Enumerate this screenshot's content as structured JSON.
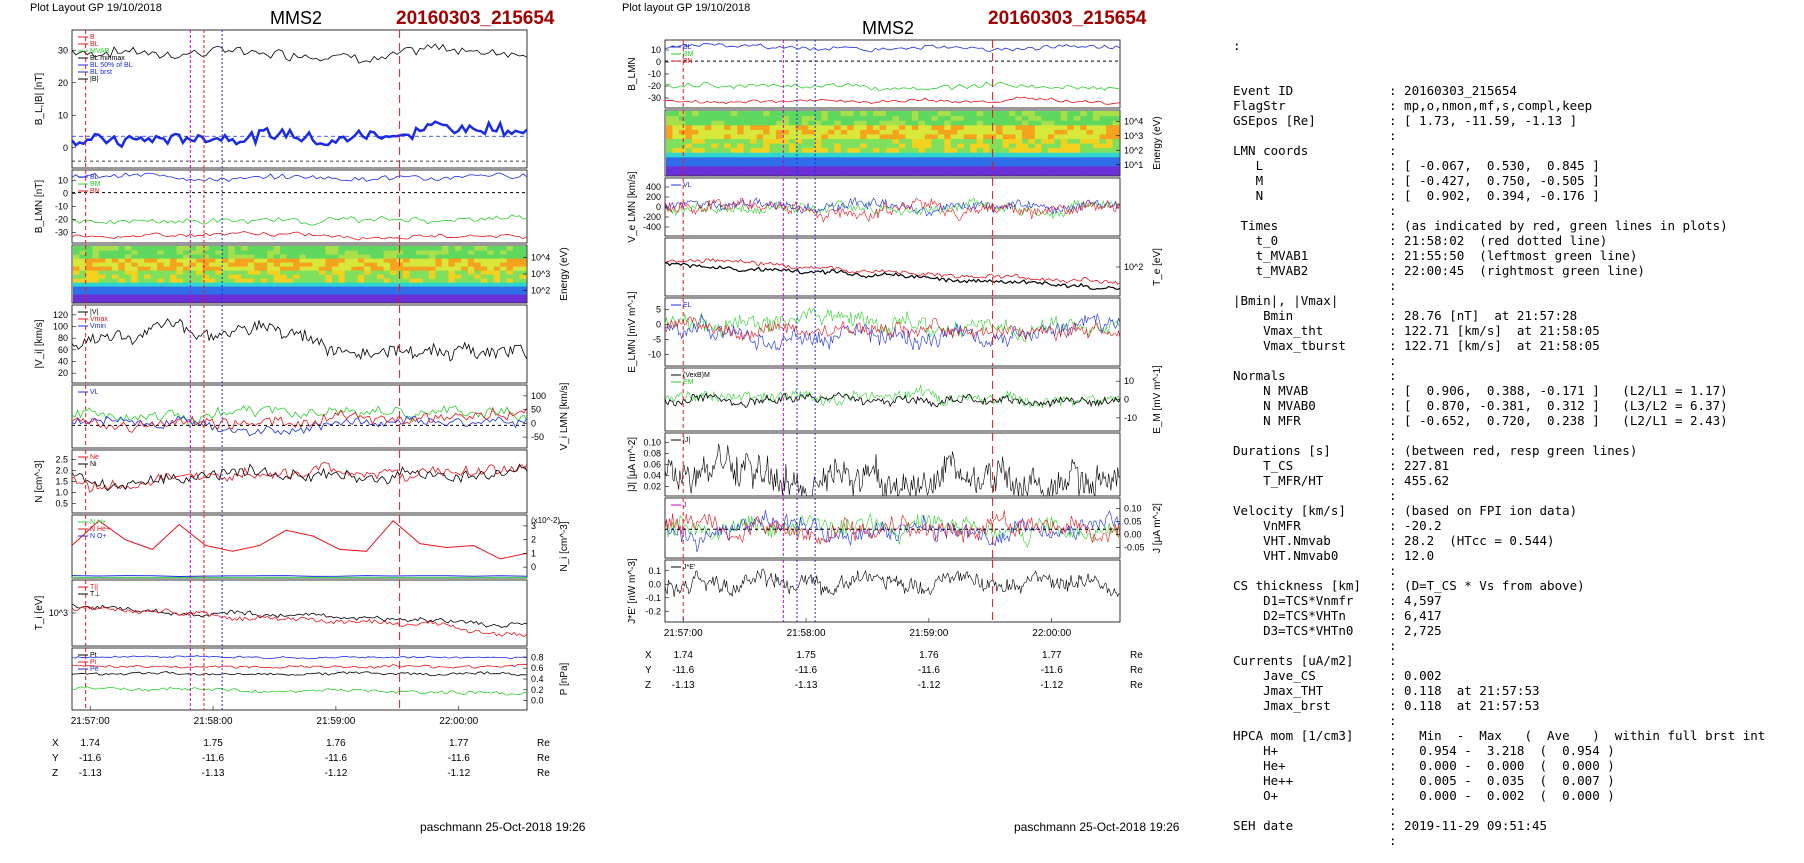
{
  "left": {
    "header": "Plot Layout GP 19/10/2018",
    "title": "MMS2",
    "event": "20160303_215654",
    "footer": "paschmann 25-Oct-2018 19:26",
    "x_ticks": [
      "21:57:00",
      "21:58:00",
      "21:59:00",
      "22:00:00"
    ],
    "pos_rows": [
      {
        "lab": "X",
        "vals": [
          "1.74",
          "1.75",
          "1.76",
          "1.77"
        ],
        "unit": "Re"
      },
      {
        "lab": "Y",
        "vals": [
          "-11.6",
          "-11.6",
          "-11.6",
          "-11.6"
        ],
        "unit": "Re"
      },
      {
        "lab": "Z",
        "vals": [
          "-1.13",
          "-1.13",
          "-1.12",
          "-1.12"
        ],
        "unit": "Re"
      }
    ],
    "panels": [
      {
        "ylabel": "B_L,|B| [nT]",
        "side": "left",
        "ticks": [
          "0",
          "10",
          "20",
          "30"
        ],
        "legend": [
          "B",
          "BL",
          "MVAB",
          "BL minmax",
          "BL 50% of BL",
          "BL brst",
          "|B|"
        ]
      },
      {
        "ylabel": "B_LMN [nT]",
        "side": "left",
        "ticks": [
          "-30",
          "-20",
          "-10",
          "0",
          "10"
        ],
        "legend": [
          "BL",
          "BM",
          "BN"
        ]
      },
      {
        "ylabel": "Energy (eV)",
        "side": "right",
        "ticks": [
          "10^2",
          "10^3",
          "10^4"
        ],
        "legend": []
      },
      {
        "ylabel": "|V_i| [km/s]",
        "side": "left",
        "ticks": [
          "20",
          "40",
          "60",
          "80",
          "100",
          "120"
        ],
        "legend": [
          "|V|",
          "Vmax",
          "Vmin"
        ]
      },
      {
        "ylabel": "V_i LMN [km/s]",
        "side": "right",
        "ticks": [
          "-50",
          "0",
          "50",
          "100"
        ],
        "legend": [
          "VL"
        ]
      },
      {
        "ylabel": "N [cm^-3]",
        "side": "left",
        "ticks": [
          "0.5",
          "1.0",
          "1.5",
          "2.0",
          "2.5"
        ],
        "legend": [
          "Ne",
          "Ni"
        ]
      },
      {
        "ylabel": "N_i [cm^-3]",
        "side": "right",
        "ticks": [
          "0",
          "1",
          "2",
          "3"
        ],
        "legend": [
          "N H+",
          "N He+",
          "N O+"
        ],
        "extra": "(x10^-2)"
      },
      {
        "ylabel": "T_i [eV]",
        "side": "left",
        "ticks": [
          "10^3"
        ],
        "legend": [
          "T||",
          "T⊥"
        ]
      },
      {
        "ylabel": "P [nPa]",
        "side": "right",
        "ticks": [
          "0.0",
          "0.2",
          "0.4",
          "0.6",
          "0.8"
        ],
        "legend": [
          "Pt",
          "Pi",
          "Pe"
        ]
      }
    ]
  },
  "middle": {
    "header": "Plot layout GP 19/10/2018",
    "title": "MMS2",
    "event": "20160303_215654",
    "footer": "paschmann 25-Oct-2018 19:26",
    "x_ticks": [
      "21:57:00",
      "21:58:00",
      "21:59:00",
      "22:00:00"
    ],
    "pos_rows": [
      {
        "lab": "X",
        "vals": [
          "1.74",
          "1.75",
          "1.76",
          "1.77"
        ],
        "unit": "Re"
      },
      {
        "lab": "Y",
        "vals": [
          "-11.6",
          "-11.6",
          "-11.6",
          "-11.6"
        ],
        "unit": "Re"
      },
      {
        "lab": "Z",
        "vals": [
          "-1.13",
          "-1.13",
          "-1.12",
          "-1.12"
        ],
        "unit": "Re"
      }
    ],
    "panels": [
      {
        "ylabel": "B_LMN",
        "side": "left",
        "ticks": [
          "-30",
          "-20",
          "-10",
          "0",
          "10"
        ],
        "legend": [
          "BL",
          "BM",
          "BN"
        ]
      },
      {
        "ylabel": "Energy (eV)",
        "side": "right",
        "ticks": [
          "10^1",
          "10^2",
          "10^3",
          "10^4"
        ],
        "legend": []
      },
      {
        "ylabel": "V_e LMN [km/s]",
        "side": "left",
        "ticks": [
          "-400",
          "-200",
          "0",
          "200",
          "400"
        ],
        "legend": [
          "VL"
        ]
      },
      {
        "ylabel": "T_e [eV]",
        "side": "right",
        "ticks": [
          "10^2"
        ],
        "legend": []
      },
      {
        "ylabel": "E_LMN [mV m^-1]",
        "side": "left",
        "ticks": [
          "-10",
          "-5",
          "0",
          "5"
        ],
        "legend": [
          "EL"
        ]
      },
      {
        "ylabel": "E_M [mV m^-1]",
        "side": "right",
        "ticks": [
          "-10",
          "0",
          "10"
        ],
        "legend": [
          "(VexB)M",
          "EM"
        ]
      },
      {
        "ylabel": "|J| [μA m^-2]",
        "side": "left",
        "ticks": [
          "0.02",
          "0.04",
          "0.06",
          "0.08",
          "0.10"
        ],
        "legend": [
          "|J|"
        ]
      },
      {
        "ylabel": "J [μA m^-2]",
        "side": "right",
        "ticks": [
          "-0.05",
          "0.00",
          "0.05",
          "0.10"
        ],
        "legend": [
          "J"
        ]
      },
      {
        "ylabel": "J*E' [nW m^-3]",
        "side": "left",
        "ticks": [
          "-0.2",
          "-0.1",
          "0.0",
          "0.1"
        ],
        "legend": [
          "J*E'"
        ]
      }
    ]
  },
  "info": {
    "lead": ":",
    "rows": [
      [
        "Event ID",
        ": 20160303_215654"
      ],
      [
        "FlagStr",
        ": mp,o,nmon,mf,s,compl,keep"
      ],
      [
        "GSEpos [Re]",
        ": [ 1.73, -11.59, -1.13 ]"
      ],
      [
        "",
        ":"
      ],
      [
        "LMN coords",
        ":"
      ],
      [
        "   L",
        ": [ -0.067,  0.530,  0.845 ]"
      ],
      [
        "   M",
        ": [ -0.427,  0.750, -0.505 ]"
      ],
      [
        "   N",
        ": [  0.902,  0.394, -0.176 ]"
      ],
      [
        "",
        ":"
      ],
      [
        " Times",
        ": (as indicated by red, green lines in plots)"
      ],
      [
        "   t_0",
        ": 21:58:02  (red dotted line)"
      ],
      [
        "   t_MVAB1",
        ": 21:55:50  (leftmost green line)"
      ],
      [
        "   t_MVAB2",
        ": 22:00:45  (rightmost green line)"
      ],
      [
        "",
        ":"
      ],
      [
        "|Bmin|, |Vmax|",
        ":"
      ],
      [
        "    Bmin",
        ": 28.76 [nT]  at 21:57:28"
      ],
      [
        "    Vmax_tht",
        ": 122.71 [km/s]  at 21:58:05"
      ],
      [
        "    Vmax_tburst",
        ": 122.71 [km/s]  at 21:58:05"
      ],
      [
        "",
        ":"
      ],
      [
        "Normals",
        ":"
      ],
      [
        "    N MVAB",
        ": [  0.906,  0.388, -0.171 ]   (L2/L1 = 1.17)"
      ],
      [
        "    N MVAB0",
        ": [  0.870, -0.381,  0.312 ]   (L3/L2 = 6.37)"
      ],
      [
        "    N MFR",
        ": [ -0.652,  0.720,  0.238 ]   (L2/L1 = 2.43)"
      ],
      [
        "",
        ":"
      ],
      [
        "Durations [s]",
        ": (between red, resp green lines)"
      ],
      [
        "    T_CS",
        ": 227.81"
      ],
      [
        "    T_MFR/HT",
        ": 455.62"
      ],
      [
        "",
        ":"
      ],
      [
        "Velocity [km/s]",
        ": (based on FPI ion data)"
      ],
      [
        "    VnMFR",
        ": -20.2"
      ],
      [
        "    VHT.Nmvab",
        ": 28.2  (HTcc = 0.544)"
      ],
      [
        "    VHT.Nmvab0",
        ": 12.0"
      ],
      [
        "",
        ":"
      ],
      [
        "CS thickness [km]",
        ": (D=T_CS * Vs from above)"
      ],
      [
        "    D1=TCS*Vnmfr",
        ": 4,597"
      ],
      [
        "    D2=TCS*VHTn",
        ": 6,417"
      ],
      [
        "    D3=TCS*VHTn0",
        ": 2,725"
      ],
      [
        "",
        ":"
      ],
      [
        "Currents [uA/m2]",
        ":"
      ],
      [
        "    Jave_CS",
        ": 0.002"
      ],
      [
        "    Jmax_THT",
        ": 0.118  at 21:57:53"
      ],
      [
        "    Jmax_brst",
        ": 0.118  at 21:57:53"
      ],
      [
        "",
        ":"
      ],
      [
        "HPCA mom [1/cm3]",
        ":   Min  -  Max   (  Ave   )  within full brst int"
      ],
      [
        "    H+",
        ":   0.954 -  3.218  (  0.954 )"
      ],
      [
        "    He+",
        ":   0.000 -  0.000  (  0.000 )"
      ],
      [
        "    He++",
        ":   0.005 -  0.035  (  0.007 )"
      ],
      [
        "    O+",
        ":   0.000 -  0.002  (  0.000 )"
      ],
      [
        "",
        ":"
      ],
      [
        "SEH date",
        ": 2019-11-29 09:51:45"
      ],
      [
        "",
        ":"
      ]
    ]
  },
  "colors": {
    "red": "#e8141c",
    "green": "#2bd02b",
    "blue": "#1a2be6",
    "black": "#000000",
    "magenta": "#cc00cc",
    "title_red": "#a00000"
  }
}
